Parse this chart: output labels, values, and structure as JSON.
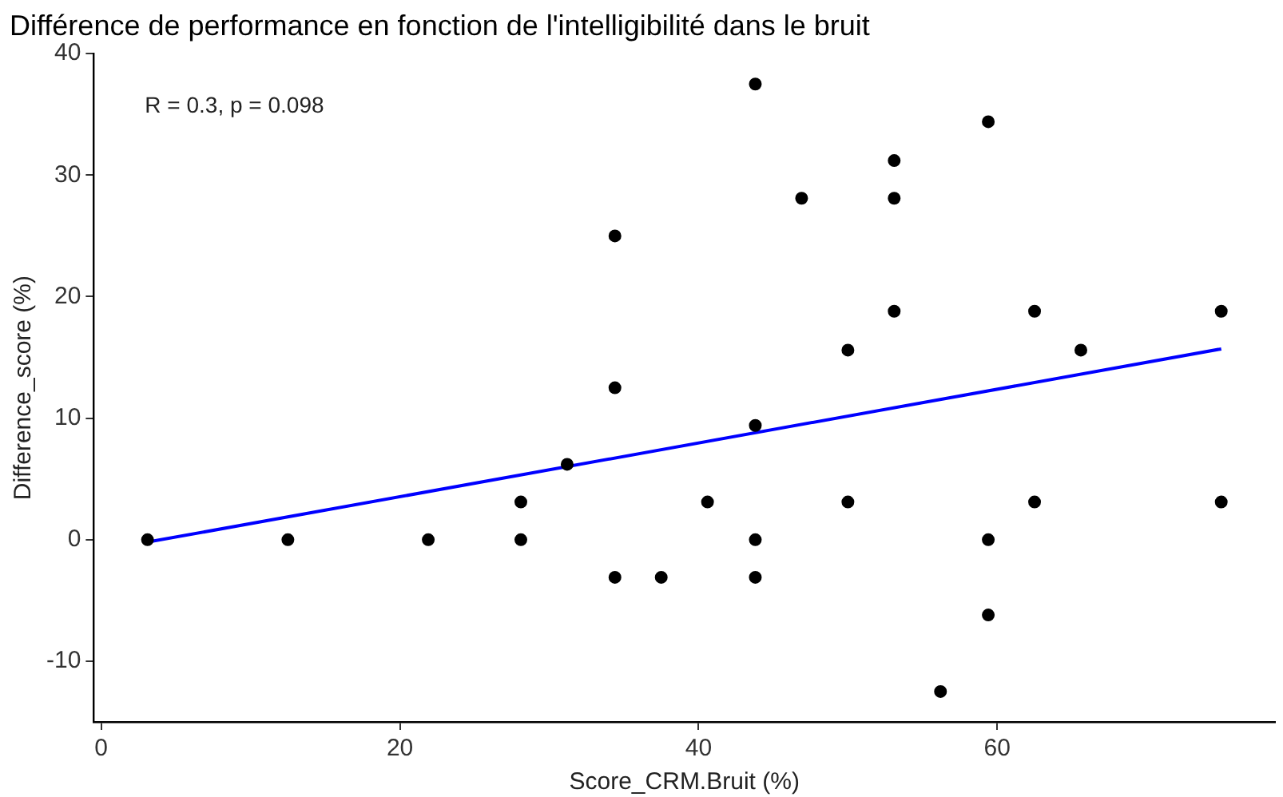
{
  "chart_data": {
    "type": "scatter",
    "title": "Différence de performance en fonction de l'intelligibilité dans le bruit",
    "xlabel": "Score_CRM.Bruit (%)",
    "ylabel": "Difference_score (%)",
    "annotations": [
      "R = 0.3, p = 0.098"
    ],
    "xlim": [
      -0.5,
      78.6
    ],
    "xticks": [
      0,
      20,
      40,
      60
    ],
    "ylim": [
      -15,
      40
    ],
    "yticks": [
      -10,
      0,
      10,
      20,
      30,
      40
    ],
    "grid": false,
    "legend": false,
    "marker": "circle",
    "series": [
      {
        "color": "#000000",
        "x": [
          3.1,
          12.5,
          21.9,
          28.1,
          28.1,
          31.2,
          34.4,
          34.4,
          34.4,
          37.5,
          40.6,
          43.8,
          43.8,
          43.8,
          43.8,
          46.9,
          50,
          50,
          53.1,
          53.1,
          53.1,
          56.2,
          59.4,
          59.4,
          59.4,
          62.5,
          62.5,
          65.6,
          75,
          75
        ],
        "values": [
          0,
          0,
          0,
          3.1,
          0,
          6.2,
          25,
          12.5,
          -3.1,
          -3.1,
          3.1,
          37.5,
          9.4,
          0,
          -3.1,
          28.1,
          15.6,
          3.1,
          31.2,
          28.1,
          18.8,
          -12.5,
          34.4,
          0,
          -6.2,
          18.8,
          3.1,
          15.6,
          18.8,
          3.1
        ]
      },
      {
        "type": "line",
        "color": "#0000ff",
        "marker": "none",
        "line_style": "solid",
        "x": [
          3.1,
          75
        ],
        "values": [
          -0.2,
          15.7
        ]
      }
    ]
  }
}
